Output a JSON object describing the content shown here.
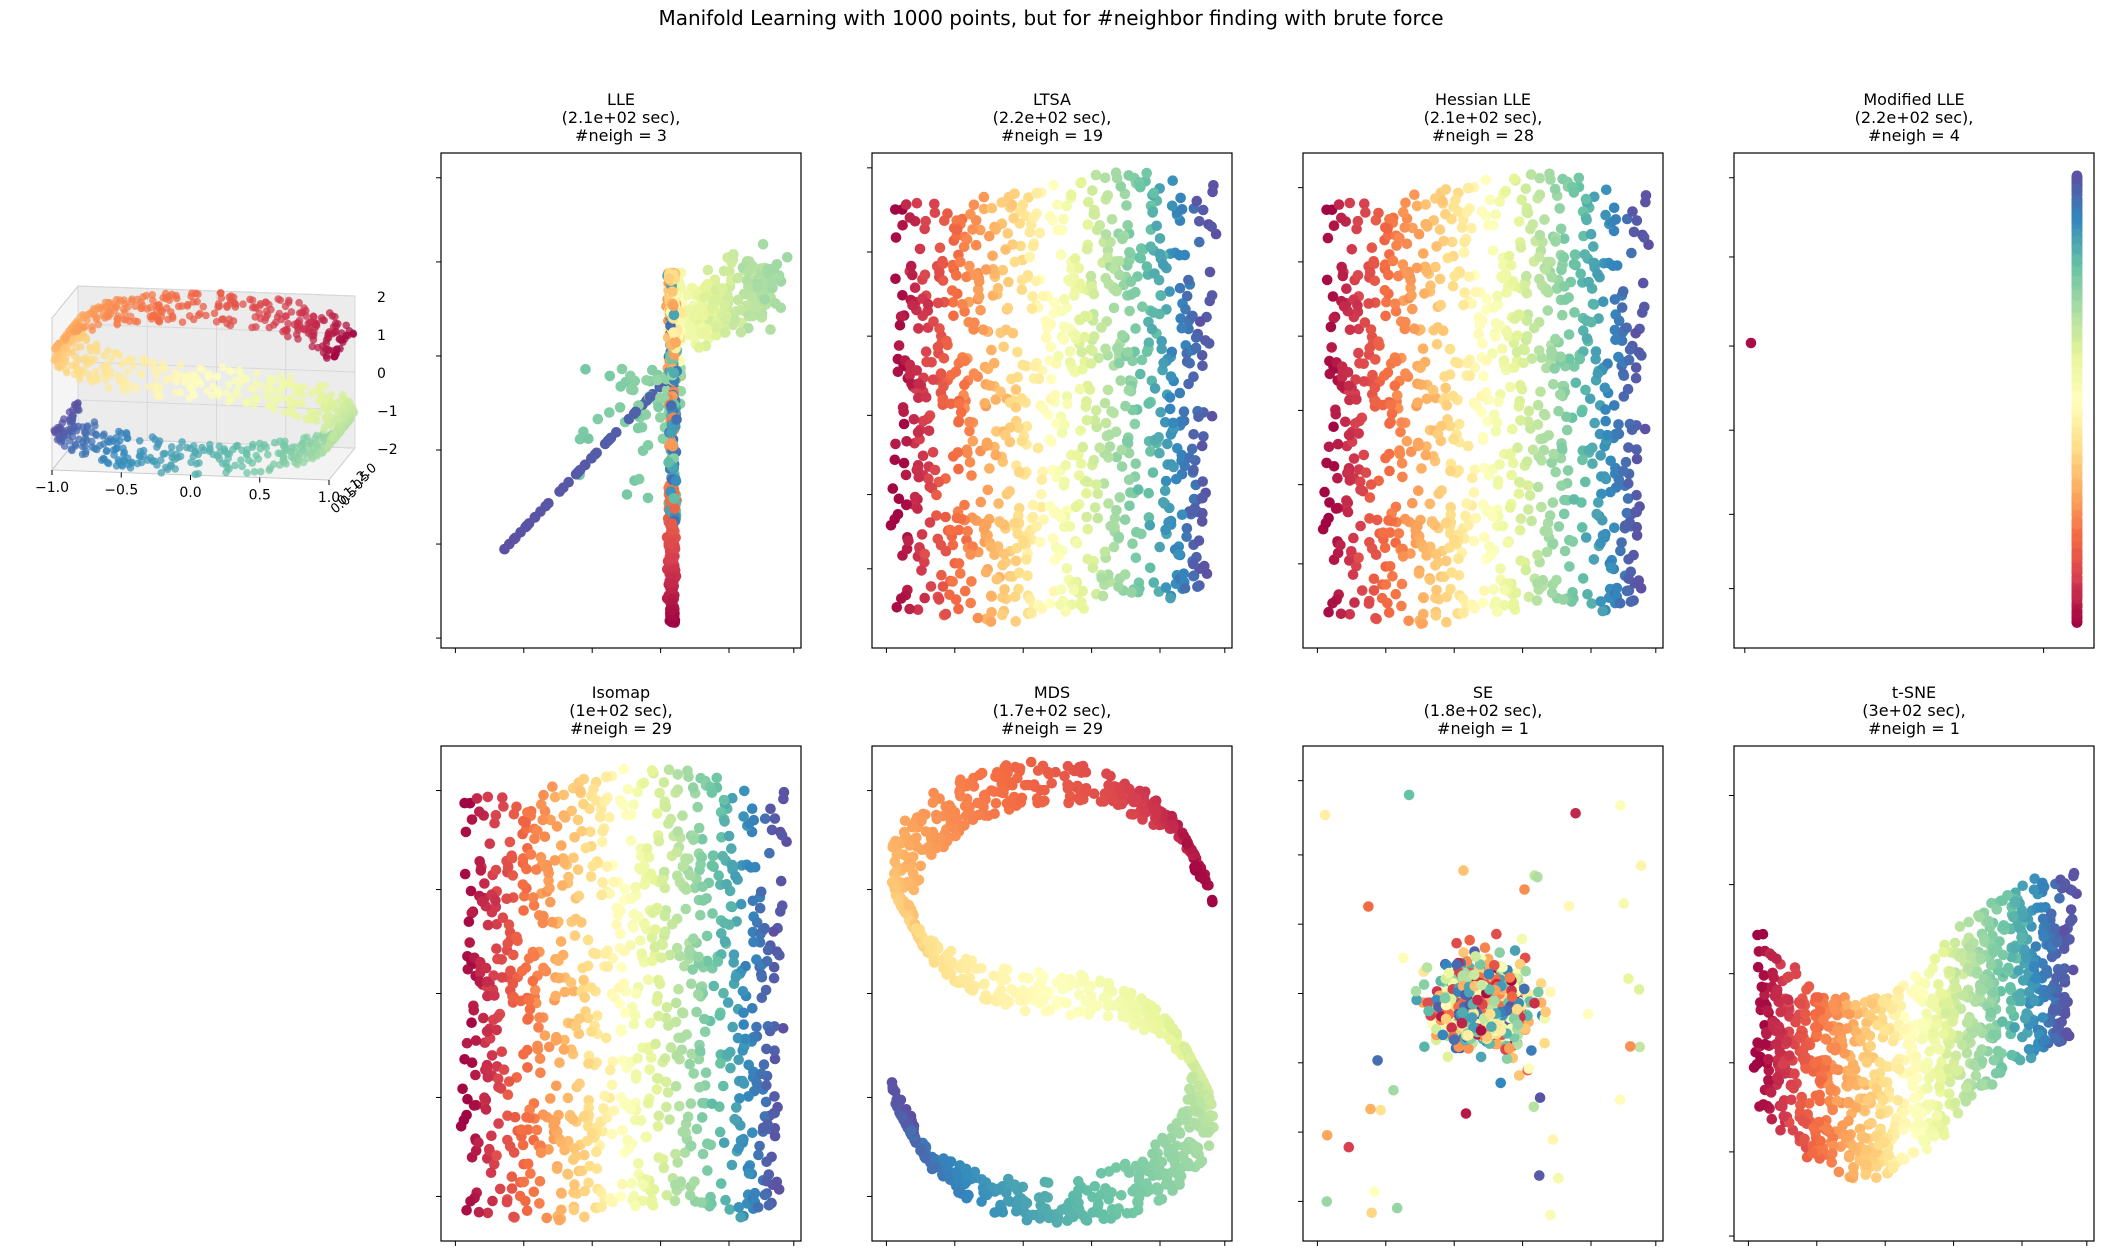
{
  "figure": {
    "title": "Manifold Learning with 1000 points, but for #neighbor finding with brute force"
  },
  "colormap": "Spectral",
  "colors": [
    "#9e0142",
    "#d53e4f",
    "#f46d43",
    "#fdae61",
    "#fee08b",
    "#ffffbf",
    "#e6f598",
    "#abdda4",
    "#66c2a5",
    "#3288bd",
    "#5e4fa2"
  ],
  "chart_data": [
    {
      "id": "scurve3d",
      "type": "scatter",
      "projection": "3d",
      "n_points": 1000,
      "description_source": "S-curve dataset",
      "xticks": [
        "−1.0",
        "−0.5",
        "0.0",
        "0.5",
        "1.0"
      ],
      "yticks": [
        "0.0",
        "0.5",
        "1.0",
        "1.5",
        "2.0"
      ],
      "zticks": [
        "−2",
        "−1",
        "0",
        "1",
        "2"
      ],
      "xlim": [
        -1,
        1
      ],
      "ylim": [
        0,
        2
      ],
      "zlim": [
        -2,
        2
      ],
      "grid": true
    },
    {
      "id": "lle",
      "type": "scatter",
      "title_lines": [
        "LLE",
        "(2.1e+02 sec),",
        "#neigh = 3"
      ],
      "method": "LLE",
      "time_sec": 210,
      "n_neighbors": 3,
      "pattern": "degenerate-spikes",
      "ticks_hidden_labels": true
    },
    {
      "id": "ltsa",
      "type": "scatter",
      "title_lines": [
        "LTSA",
        "(2.2e+02 sec),",
        "#neigh = 19"
      ],
      "method": "LTSA",
      "time_sec": 220,
      "n_neighbors": 19,
      "pattern": "unrolled-rectangle",
      "color_direction": "left-to-right"
    },
    {
      "id": "hlle",
      "type": "scatter",
      "title_lines": [
        "Hessian LLE",
        "(2.1e+02 sec),",
        "#neigh = 28"
      ],
      "method": "Hessian LLE",
      "time_sec": 210,
      "n_neighbors": 28,
      "pattern": "unrolled-rectangle",
      "color_direction": "left-to-right"
    },
    {
      "id": "mlle",
      "type": "scatter",
      "title_lines": [
        "Modified LLE",
        "(2.2e+02 sec),",
        "#neigh = 4"
      ],
      "method": "Modified LLE",
      "time_sec": 220,
      "n_neighbors": 4,
      "pattern": "vertical-line-with-outlier"
    },
    {
      "id": "isomap",
      "type": "scatter",
      "title_lines": [
        "Isomap",
        "(1e+02 sec),",
        "#neigh = 29"
      ],
      "method": "Isomap",
      "time_sec": 100,
      "n_neighbors": 29,
      "pattern": "unrolled-rectangle",
      "color_direction": "left-to-right"
    },
    {
      "id": "mds",
      "type": "scatter",
      "title_lines": [
        "MDS",
        "(1.7e+02 sec),",
        "#neigh = 29"
      ],
      "method": "MDS",
      "time_sec": 170,
      "n_neighbors": 29,
      "pattern": "s-shape"
    },
    {
      "id": "se",
      "type": "scatter",
      "title_lines": [
        "SE",
        "(1.8e+02 sec),",
        "#neigh = 1"
      ],
      "method": "SE",
      "time_sec": 180,
      "n_neighbors": 1,
      "pattern": "central-cluster"
    },
    {
      "id": "tsne",
      "type": "scatter",
      "title_lines": [
        "t-SNE",
        "(3e+02 sec),",
        "#neigh = 1"
      ],
      "method": "t-SNE",
      "time_sec": 300,
      "n_neighbors": 1,
      "pattern": "folded-s-band"
    }
  ]
}
